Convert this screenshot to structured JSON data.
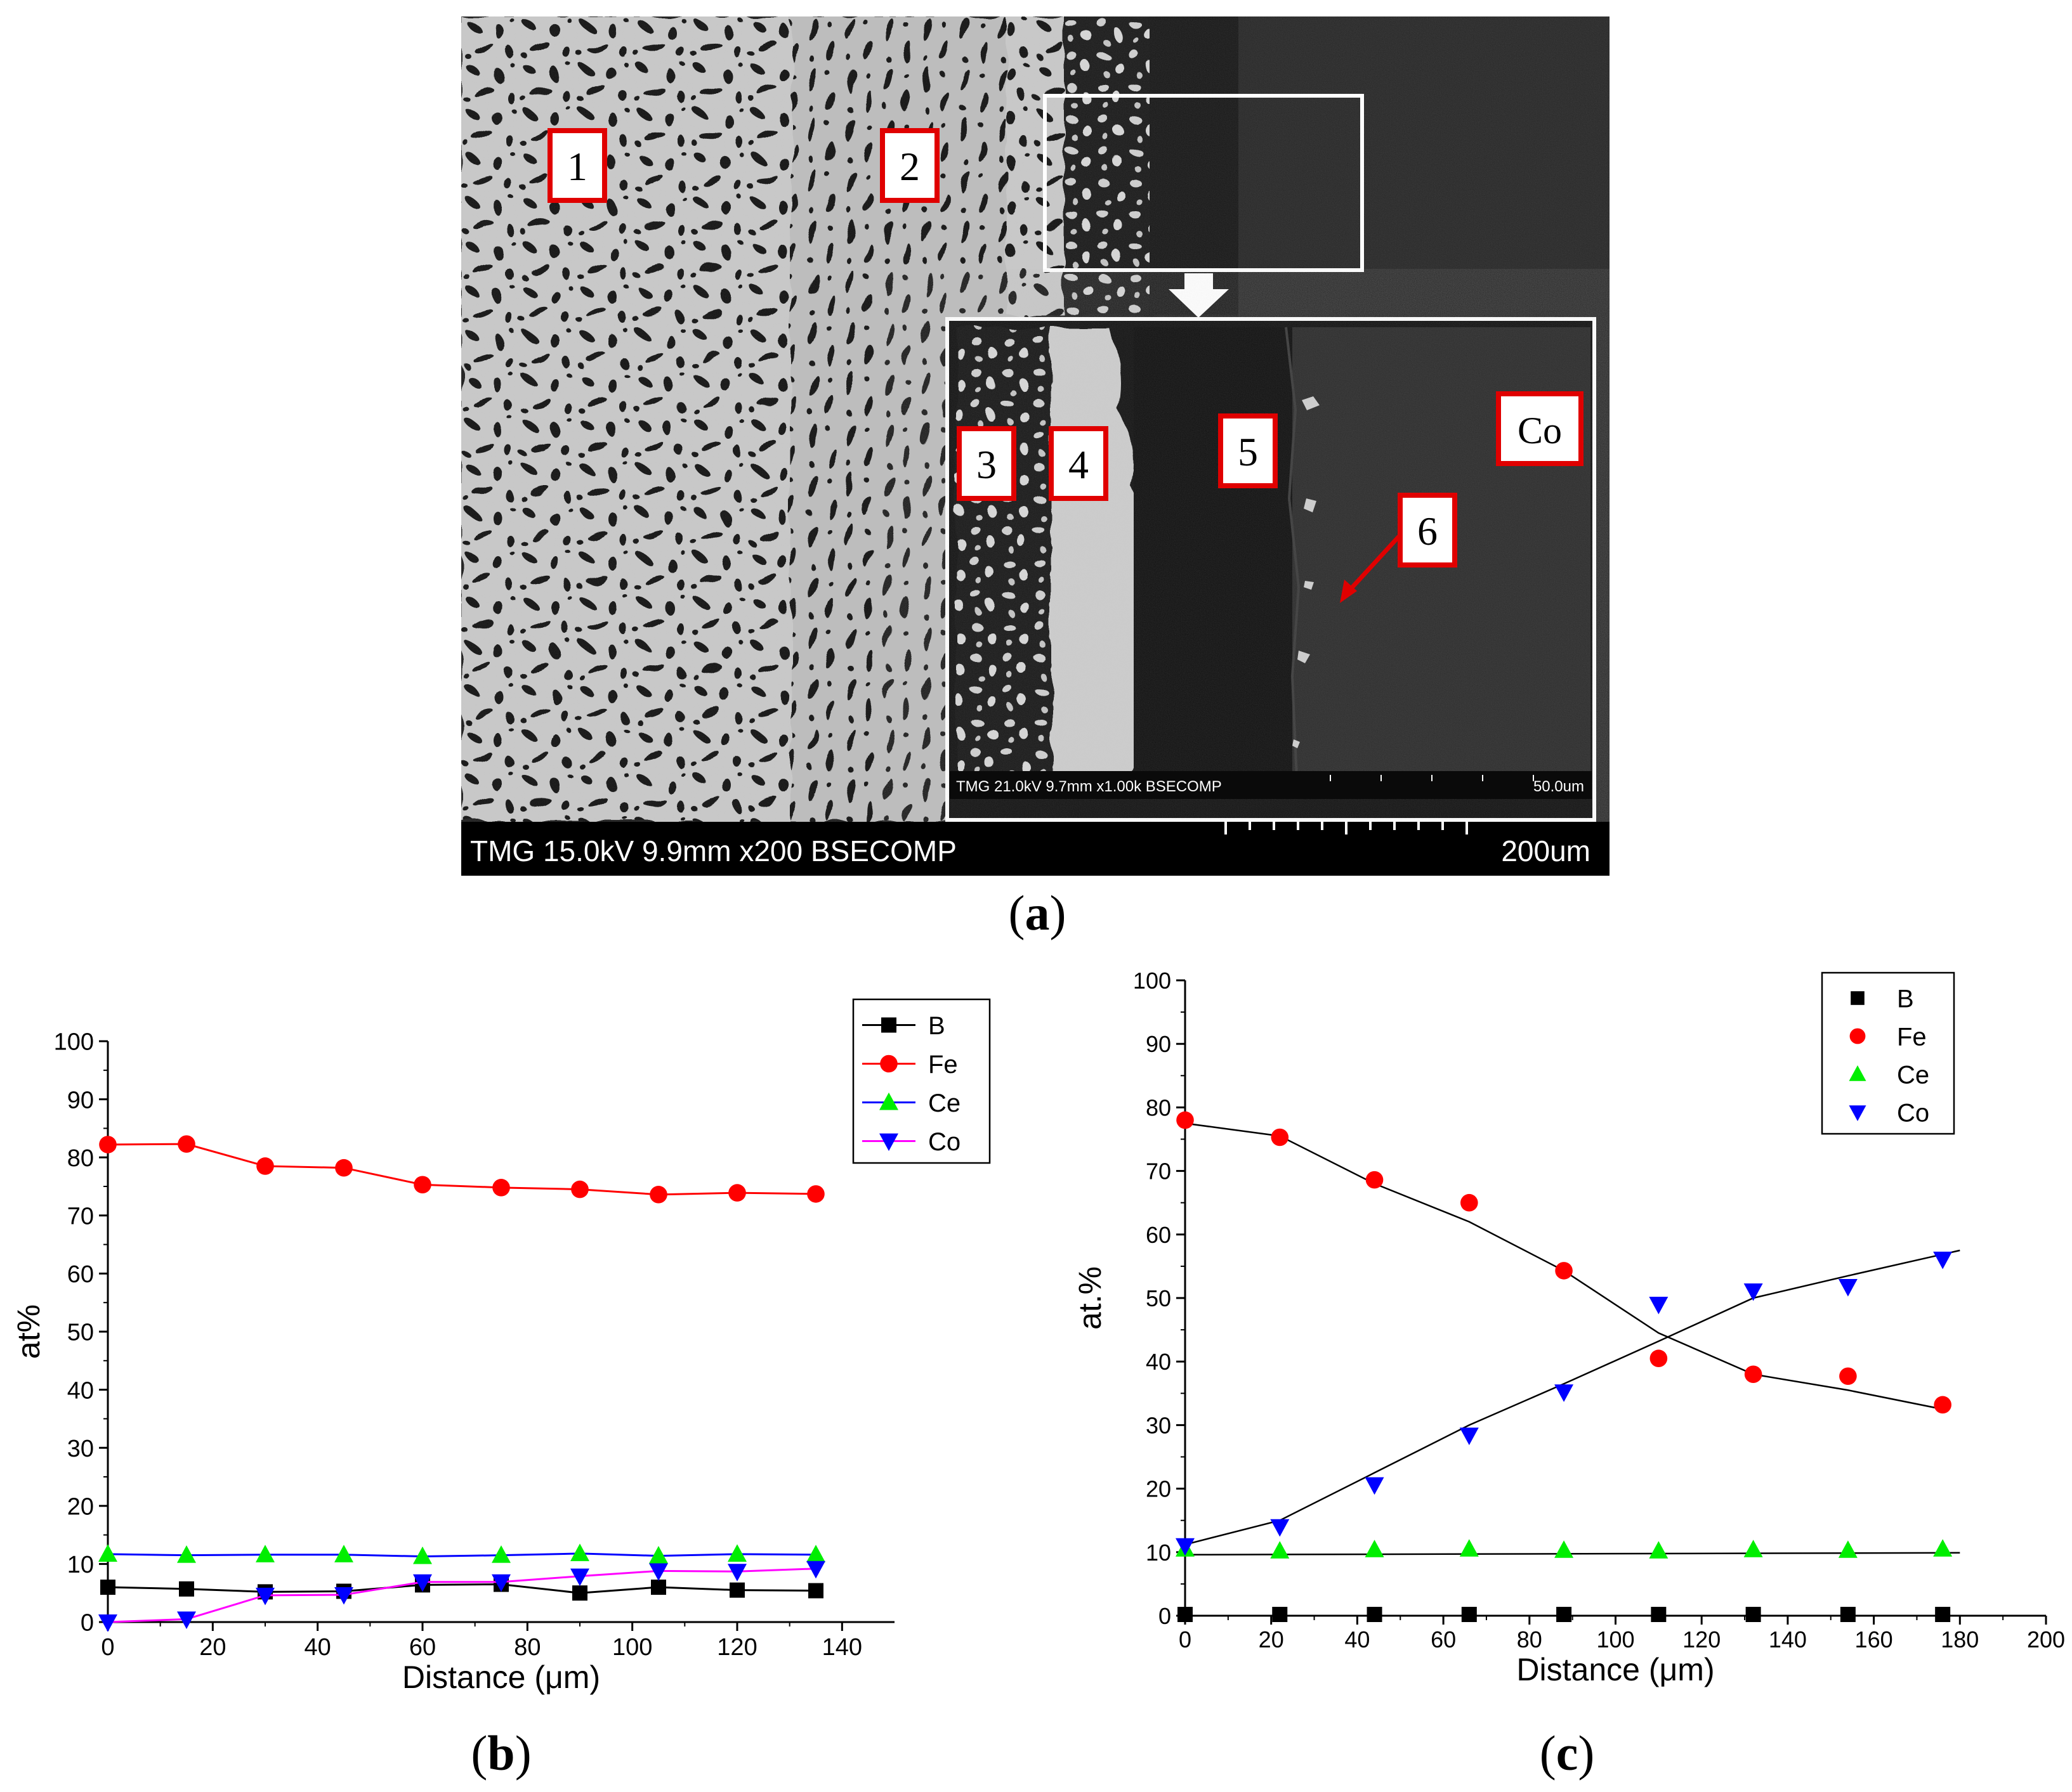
{
  "panel_a": {
    "caption_open": "(",
    "caption_letter": "a",
    "caption_close": ")",
    "sem_footer": "TMG 15.0kV 9.9mm x200 BSECOMP",
    "sem_scale": "200um",
    "inset_footer": "TMG 21.0kV 9.7mm x1.00k BSECOMP",
    "inset_scale": "50.0um",
    "labels": [
      "1",
      "2",
      "3",
      "4",
      "5",
      "6",
      "Co"
    ]
  },
  "panel_b": {
    "caption_open": "(",
    "caption_letter": "b",
    "caption_close": ")"
  },
  "panel_c": {
    "caption_open": "(",
    "caption_letter": "c",
    "caption_close": ")"
  },
  "chart_data": [
    {
      "id": "b",
      "type": "line",
      "xlabel": "Distance (μm)",
      "ylabel": "at%",
      "xlim": [
        0,
        150
      ],
      "ylim": [
        0,
        100
      ],
      "xticks": [
        0,
        20,
        40,
        60,
        80,
        100,
        120,
        140
      ],
      "yticks": [
        0,
        10,
        20,
        30,
        40,
        50,
        60,
        70,
        80,
        90,
        100
      ],
      "legend_position": "top-right",
      "x": [
        0,
        15,
        30,
        45,
        60,
        75,
        90,
        105,
        120,
        135
      ],
      "series": [
        {
          "name": "B",
          "marker": "square",
          "color": "#000000",
          "line_color": "#000000",
          "values": [
            6.0,
            5.7,
            5.2,
            5.3,
            6.4,
            6.5,
            5.0,
            6.0,
            5.5,
            5.4
          ]
        },
        {
          "name": "Fe",
          "marker": "circle",
          "color": "#ff0000",
          "line_color": "#ff0000",
          "values": [
            82.2,
            82.3,
            78.5,
            78.2,
            75.3,
            74.8,
            74.5,
            73.6,
            73.9,
            73.7
          ]
        },
        {
          "name": "Ce",
          "marker": "triangle-up",
          "color": "#00ee00",
          "line_color": "#0000ff",
          "values": [
            11.7,
            11.5,
            11.6,
            11.6,
            11.3,
            11.5,
            11.8,
            11.4,
            11.7,
            11.6
          ]
        },
        {
          "name": "Co",
          "marker": "triangle-down",
          "color": "#0000ff",
          "line_color": "#ff00ff",
          "values": [
            0.0,
            0.5,
            4.6,
            4.7,
            6.9,
            6.9,
            7.9,
            8.8,
            8.7,
            9.2
          ]
        }
      ]
    },
    {
      "id": "c",
      "type": "scatter",
      "xlabel": "Distance (μm)",
      "ylabel": "at.%",
      "xlim": [
        0,
        200
      ],
      "ylim": [
        0,
        100
      ],
      "xticks": [
        0,
        20,
        40,
        60,
        80,
        100,
        120,
        140,
        160,
        180,
        200
      ],
      "yticks": [
        0,
        10,
        20,
        30,
        40,
        50,
        60,
        70,
        80,
        90,
        100
      ],
      "legend_position": "top-right",
      "x": [
        0,
        22,
        44,
        66,
        88,
        110,
        132,
        154,
        176
      ],
      "series": [
        {
          "name": "B",
          "marker": "square",
          "color": "#000000",
          "values": [
            0.2,
            0.2,
            0.2,
            0.2,
            0.2,
            0.2,
            0.2,
            0.2,
            0.2
          ],
          "fit": [
            [
              0,
              0
            ],
            [
              180,
              0
            ]
          ]
        },
        {
          "name": "Fe",
          "marker": "circle",
          "color": "#ff0000",
          "values": [
            78.0,
            75.3,
            68.6,
            65.0,
            54.3,
            40.5,
            38.0,
            37.7,
            33.2
          ],
          "fit": [
            [
              0,
              77.5
            ],
            [
              22,
              75.5
            ],
            [
              44,
              68.0
            ],
            [
              66,
              62.0
            ],
            [
              88,
              54.3
            ],
            [
              110,
              44.5
            ],
            [
              132,
              38.0
            ],
            [
              154,
              35.5
            ],
            [
              176,
              32.5
            ]
          ]
        },
        {
          "name": "Ce",
          "marker": "triangle-up",
          "color": "#00ee00",
          "values": [
            10.5,
            10.2,
            10.4,
            10.5,
            10.3,
            10.2,
            10.4,
            10.3,
            10.5
          ],
          "fit": [
            [
              0,
              9.6
            ],
            [
              180,
              9.9
            ]
          ]
        },
        {
          "name": "Co",
          "marker": "triangle-down",
          "color": "#0000ff",
          "values": [
            11.0,
            14.0,
            20.6,
            28.4,
            35.2,
            49.0,
            51.1,
            51.8,
            56.1
          ],
          "fit": [
            [
              0,
              11.2
            ],
            [
              22,
              15.0
            ],
            [
              44,
              22.5
            ],
            [
              66,
              30.0
            ],
            [
              88,
              36.5
            ],
            [
              110,
              43.2
            ],
            [
              132,
              50.0
            ],
            [
              154,
              53.5
            ],
            [
              180,
              57.5
            ]
          ]
        }
      ]
    }
  ]
}
